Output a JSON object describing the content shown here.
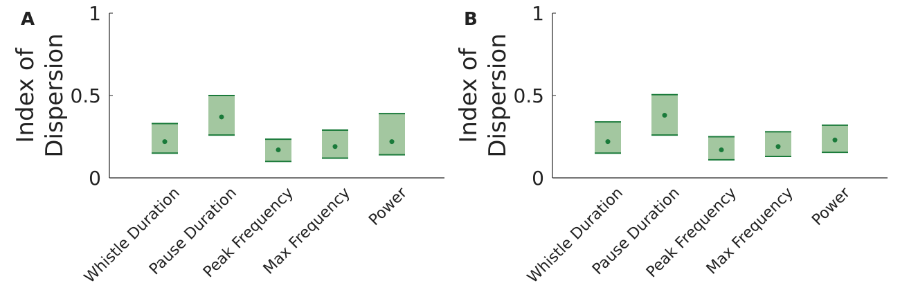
{
  "chart_data": [
    {
      "type": "range",
      "label": "A",
      "ylabel": [
        "Index of",
        "Dispersion"
      ],
      "categories": [
        "Whistle Duration",
        "Pause Duration",
        "Peak Frequency",
        "Max Frequency",
        "Power"
      ],
      "low": [
        0.15,
        0.26,
        0.1,
        0.12,
        0.14
      ],
      "high": [
        0.33,
        0.5,
        0.235,
        0.29,
        0.39
      ],
      "mean": [
        0.22,
        0.37,
        0.17,
        0.19,
        0.22
      ],
      "color": "#1a7a3a",
      "fill_color": "#a3c7a0",
      "ylim": [
        0,
        1
      ],
      "yticks": [
        0,
        0.5,
        1
      ]
    },
    {
      "type": "range",
      "label": "B",
      "ylabel": [
        "Index of",
        "Dispersion"
      ],
      "categories": [
        "Whistle Duration",
        "Pause Duration",
        "Peak Frequency",
        "Max Frequency",
        "Power"
      ],
      "low": [
        0.15,
        0.26,
        0.11,
        0.13,
        0.155
      ],
      "high": [
        0.34,
        0.505,
        0.25,
        0.28,
        0.32
      ],
      "mean": [
        0.22,
        0.38,
        0.17,
        0.19,
        0.23
      ],
      "color": "#1a7a3a",
      "fill_color": "#a3c7a0",
      "ylim": [
        0,
        1
      ],
      "yticks": [
        0,
        0.5,
        1
      ]
    }
  ]
}
